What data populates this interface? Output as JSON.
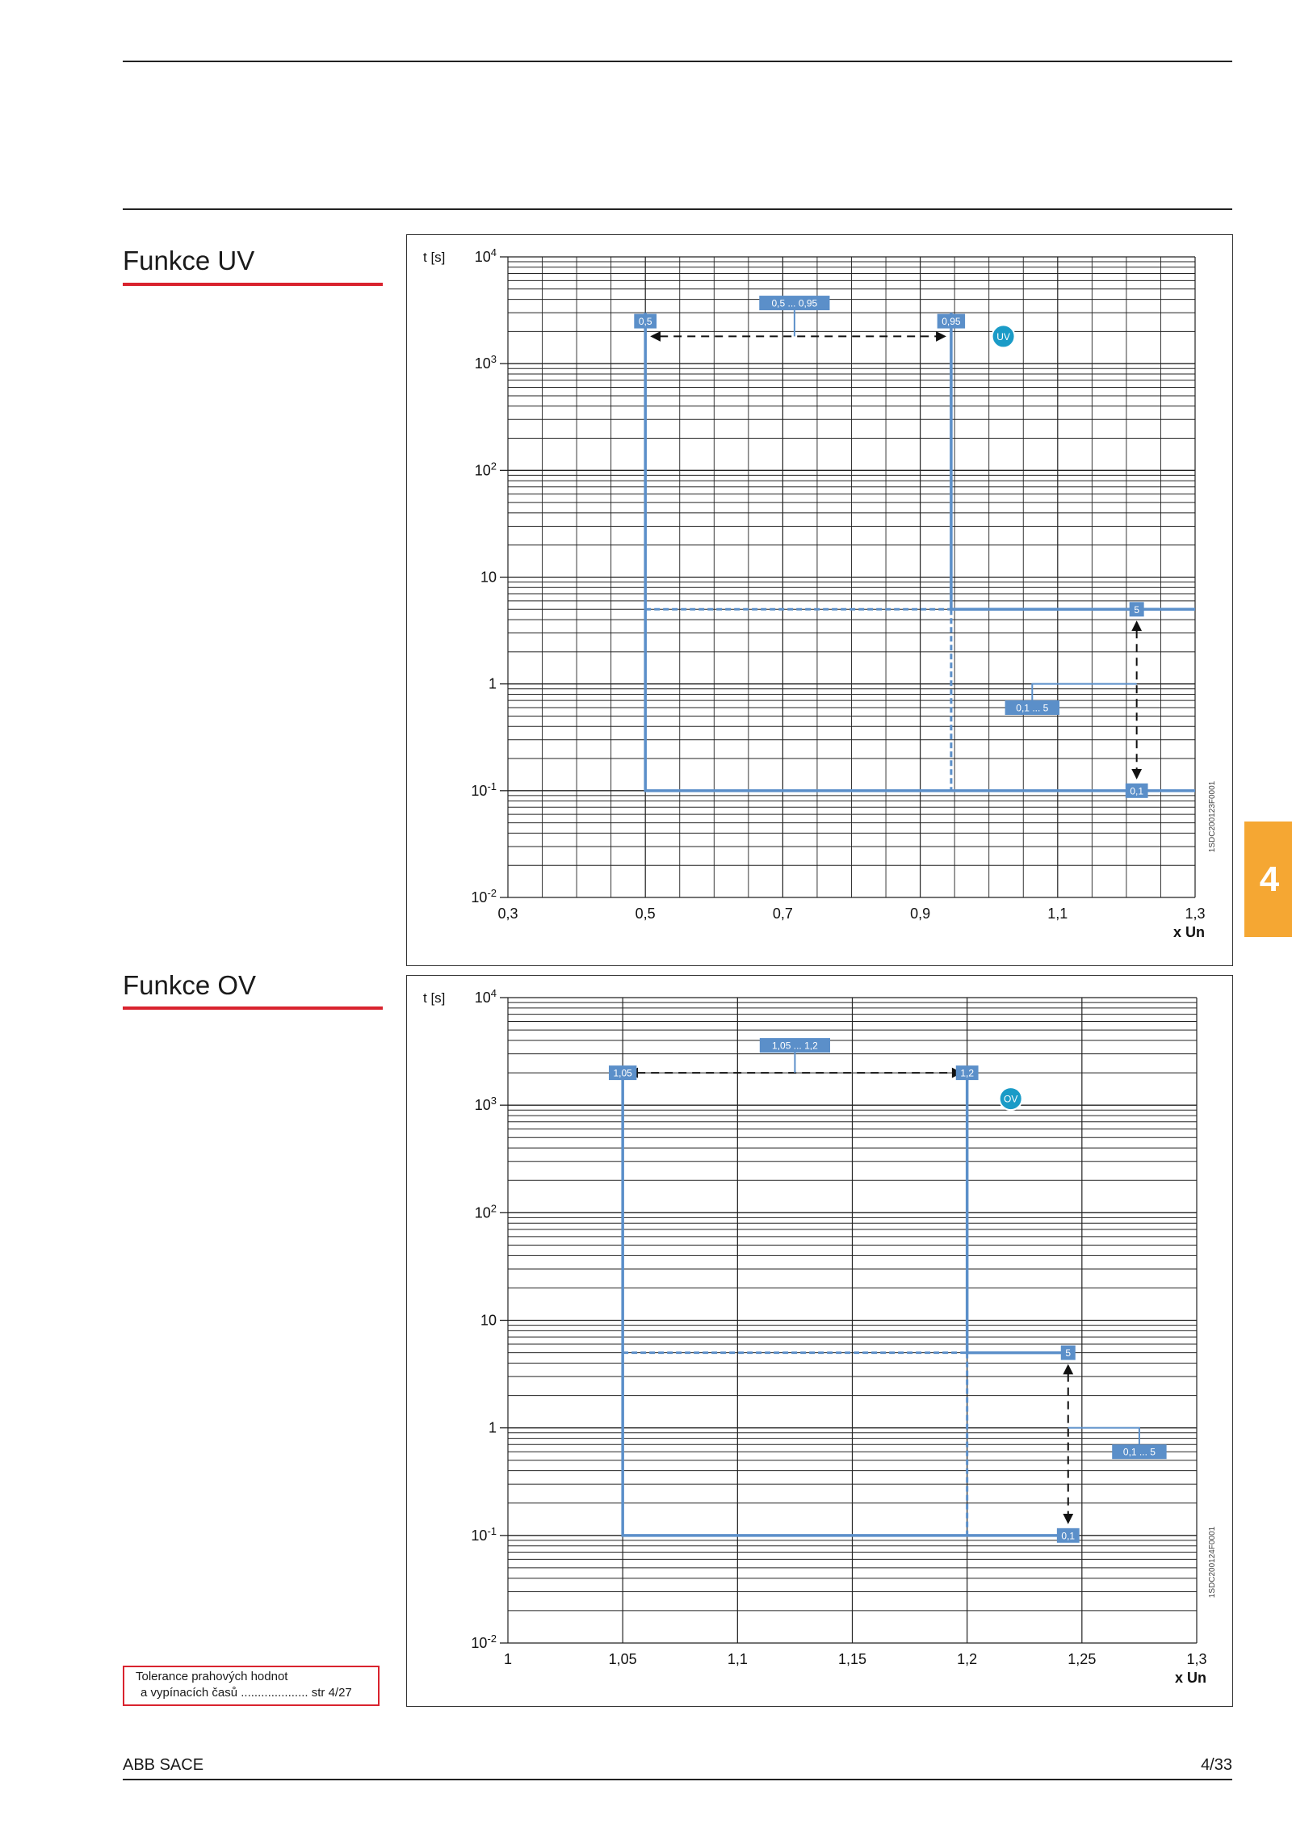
{
  "page": {
    "section_uv_title": "Funkce UV",
    "section_ov_title": "Funkce OV",
    "tab_number": "4",
    "tolerance_line1": "Tolerance prahových hodnot",
    "tolerance_line2": "a vypínacích časů  .................... str 4/27",
    "footer_left": "ABB SACE",
    "footer_right": "4/33"
  },
  "colors": {
    "curve": "#5b8fc9",
    "label_bg": "#5b8fc9",
    "badge": "#1a9bc7",
    "accent_red": "#d9232e",
    "tab": "#f5a733"
  },
  "chart_data": [
    {
      "type": "line",
      "id": "UV",
      "ylabel": "t [s]",
      "xlabel": "x Un",
      "yscale": "log",
      "ylim": [
        0.01,
        10000
      ],
      "y_ticks": [
        {
          "v": 10000,
          "base": "10",
          "exp": "4"
        },
        {
          "v": 1000,
          "base": "10",
          "exp": "3"
        },
        {
          "v": 100,
          "base": "10",
          "exp": "2"
        },
        {
          "v": 10,
          "base": "10",
          "exp": ""
        },
        {
          "v": 1,
          "base": "1",
          "exp": ""
        },
        {
          "v": 0.1,
          "base": "10",
          "exp": "-1"
        },
        {
          "v": 0.01,
          "base": "10",
          "exp": "-2"
        }
      ],
      "xlim": [
        0.3,
        1.3
      ],
      "x_ticks": [
        0.3,
        0.5,
        0.7,
        0.9,
        1.1,
        1.3
      ],
      "x_tick_labels": [
        "0,3",
        "0,5",
        "0,7",
        "0,9",
        "1,1",
        "1,3"
      ],
      "grid": true,
      "series": [
        {
          "style": "solid",
          "points": [
            [
              0.5,
              3000
            ],
            [
              0.5,
              0.1
            ],
            [
              1.3,
              0.1
            ]
          ]
        },
        {
          "style": "solid",
          "points": [
            [
              0.945,
              3000
            ],
            [
              0.945,
              5
            ],
            [
              1.3,
              5
            ]
          ]
        },
        {
          "style": "dashed",
          "points": [
            [
              0.5,
              5
            ],
            [
              0.945,
              5
            ]
          ]
        },
        {
          "style": "dashed",
          "points": [
            [
              0.945,
              5
            ],
            [
              0.945,
              0.1
            ]
          ]
        }
      ],
      "labels": [
        {
          "text": "0,5 ... 0,95",
          "x": 0.717,
          "y": 3700
        },
        {
          "text": "0,5",
          "x": 0.5,
          "y": 2500
        },
        {
          "text": "0,95",
          "x": 0.945,
          "y": 2500
        },
        {
          "text": "5",
          "x": 1.215,
          "y": 5
        },
        {
          "text": "0,1 ... 5",
          "x": 1.063,
          "y": 0.6
        },
        {
          "text": "0,1",
          "x": 1.215,
          "y": 0.1
        }
      ],
      "badge": {
        "text": "UV",
        "x": 1.021,
        "y": 1800
      },
      "threshold_arrow": {
        "from": 0.5,
        "to": 0.945,
        "y": 1800,
        "leader_x": 0.717
      },
      "time_arrow": {
        "x": 1.215,
        "from": 5,
        "to": 0.1,
        "leader_x": 1.063,
        "leader_y": 1.0
      },
      "code": "1SDC200123F0001"
    },
    {
      "type": "line",
      "id": "OV",
      "ylabel": "t [s]",
      "xlabel": "x Un",
      "yscale": "log",
      "ylim": [
        0.01,
        10000
      ],
      "y_ticks": [
        {
          "v": 10000,
          "base": "10",
          "exp": "4"
        },
        {
          "v": 1000,
          "base": "10",
          "exp": "3"
        },
        {
          "v": 100,
          "base": "10",
          "exp": "2"
        },
        {
          "v": 10,
          "base": "10",
          "exp": ""
        },
        {
          "v": 1,
          "base": "1",
          "exp": ""
        },
        {
          "v": 0.1,
          "base": "10",
          "exp": "-1"
        },
        {
          "v": 0.01,
          "base": "10",
          "exp": "-2"
        }
      ],
      "xlim": [
        1.0,
        1.3
      ],
      "x_ticks": [
        1.0,
        1.05,
        1.1,
        1.15,
        1.2,
        1.25,
        1.3
      ],
      "x_tick_labels": [
        "1",
        "1,05",
        "1,1",
        "1,15",
        "1,2",
        "1,25",
        "1,3"
      ],
      "grid": true,
      "series": [
        {
          "style": "solid",
          "points": [
            [
              1.2,
              2000
            ],
            [
              1.2,
              5
            ],
            [
              1.245,
              5
            ]
          ]
        },
        {
          "style": "solid",
          "points": [
            [
              1.05,
              2000
            ],
            [
              1.05,
              0.1
            ],
            [
              1.245,
              0.1
            ]
          ]
        },
        {
          "style": "dashed",
          "points": [
            [
              1.05,
              5
            ],
            [
              1.2,
              5
            ]
          ]
        },
        {
          "style": "dashed",
          "points": [
            [
              1.2,
              5
            ],
            [
              1.2,
              0.1
            ]
          ]
        }
      ],
      "labels": [
        {
          "text": "1,05 ... 1,2",
          "x": 1.125,
          "y": 3600
        },
        {
          "text": "1,05",
          "x": 1.05,
          "y": 2000
        },
        {
          "text": "1,2",
          "x": 1.2,
          "y": 2000
        },
        {
          "text": "5",
          "x": 1.244,
          "y": 5
        },
        {
          "text": "0,1 ... 5",
          "x": 1.275,
          "y": 0.6
        },
        {
          "text": "0,1",
          "x": 1.244,
          "y": 0.1
        }
      ],
      "badge": {
        "text": "OV",
        "x": 1.219,
        "y": 1150
      },
      "threshold_arrow": {
        "from": 1.05,
        "to": 1.2,
        "y": 2000,
        "leader_x": 1.125
      },
      "time_arrow": {
        "x": 1.244,
        "from": 5,
        "to": 0.1,
        "leader_x": 1.275,
        "leader_y": 1.0
      },
      "code": "1SDC200124F0001"
    }
  ]
}
